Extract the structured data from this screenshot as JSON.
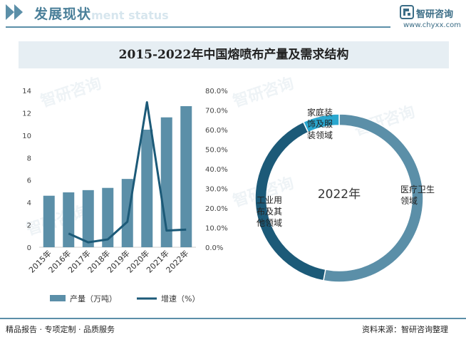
{
  "header": {
    "title": "发展现状",
    "subtitle": "ment status",
    "brand_name": "智研咨询",
    "brand_url": "www.chyxx.com"
  },
  "chart_title": "2015-2022年中国熔喷布产量及需求结构",
  "footer": {
    "left_text": "精品报告 · 专项定制 · 品质服务",
    "source_text": "资料来源：智研咨询整理"
  },
  "watermark": "智研咨询",
  "colors": {
    "bar": "#5b8fa8",
    "line": "#1c5a78",
    "donut_medical": "#5b8fa8",
    "donut_industrial": "#1c5a78",
    "donut_home": "#2aa7cf",
    "accent": "#4a7f99"
  },
  "chart_data": [
    {
      "type": "bar+line",
      "categories": [
        "2015年",
        "2016年",
        "2017年",
        "2018年",
        "2019年",
        "2020年",
        "2021年",
        "2022年"
      ],
      "series": [
        {
          "name": "产量（万吨）",
          "type": "bar",
          "axis": "left",
          "values": [
            4.6,
            4.9,
            5.1,
            5.3,
            6.1,
            10.5,
            11.6,
            12.6
          ]
        },
        {
          "name": "增速（%）",
          "type": "line",
          "axis": "right",
          "values": [
            null,
            7.0,
            2.5,
            4.0,
            13.0,
            74.0,
            8.5,
            9.0
          ]
        }
      ],
      "y_left": {
        "min": 0,
        "max": 14,
        "ticks": [
          "0",
          "2",
          "4",
          "6",
          "8",
          "10",
          "12",
          "14"
        ]
      },
      "y_right": {
        "min": 0,
        "max": 80,
        "ticks": [
          "0.0%",
          "10.0%",
          "20.0%",
          "30.0%",
          "40.0%",
          "50.0%",
          "60.0%",
          "70.0%",
          "80.0%"
        ]
      },
      "grid": false,
      "legend_position": "bottom"
    },
    {
      "type": "pie",
      "center_label": "2022年",
      "slices": [
        {
          "label": "医疗卫生领域",
          "value": 53
        },
        {
          "label": "工业用布及其他领域",
          "value": 40
        },
        {
          "label": "家庭装饰及服装领域",
          "value": 7
        }
      ]
    }
  ]
}
